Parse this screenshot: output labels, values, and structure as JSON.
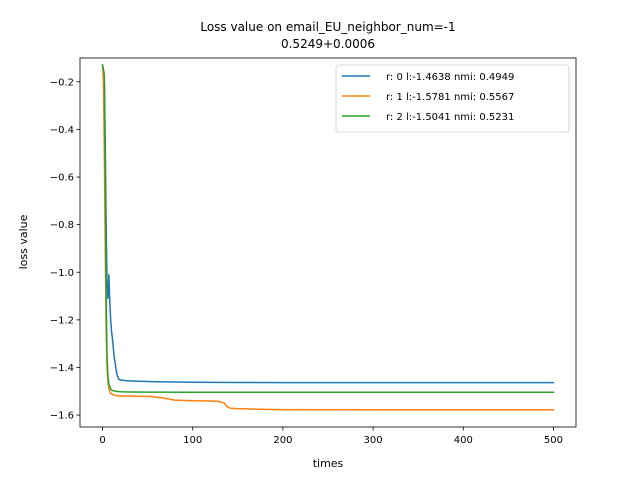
{
  "chart_data": {
    "type": "line",
    "title": "Loss value on email_EU_neighbor_num=-1",
    "subtitle": "0.5249+0.0006",
    "xlabel": "times",
    "ylabel": "loss value",
    "xlim": [
      -25,
      525
    ],
    "ylim": [
      -1.65,
      -0.1
    ],
    "xticks": [
      0,
      100,
      200,
      300,
      400,
      500
    ],
    "xtick_labels": [
      "0",
      "100",
      "200",
      "300",
      "400",
      "500"
    ],
    "yticks": [
      -0.2,
      -0.4,
      -0.6,
      -0.8,
      -1.0,
      -1.2,
      -1.4,
      -1.6
    ],
    "ytick_labels": [
      "−0.2",
      "−0.4",
      "−0.6",
      "−0.8",
      "−1.0",
      "−1.2",
      "−1.4",
      "−1.6"
    ],
    "grid": false,
    "legend_position": "top-right",
    "series": [
      {
        "name": "r: 0 l:-1.4638 nmi: 0.4949",
        "color": "#1f77b4",
        "x": [
          0,
          1,
          2,
          3,
          4,
          5,
          6,
          7,
          8,
          9,
          10,
          11,
          12,
          13,
          14,
          15,
          16,
          18,
          20,
          25,
          30,
          40,
          60,
          80,
          100,
          150,
          200,
          300,
          400,
          500
        ],
        "y": [
          -0.13,
          -0.15,
          -0.2,
          -0.45,
          -0.8,
          -1.05,
          -1.11,
          -1.01,
          -1.12,
          -1.2,
          -1.25,
          -1.28,
          -1.32,
          -1.36,
          -1.38,
          -1.41,
          -1.43,
          -1.45,
          -1.452,
          -1.455,
          -1.456,
          -1.458,
          -1.46,
          -1.461,
          -1.462,
          -1.463,
          -1.4636,
          -1.4638,
          -1.4638,
          -1.4638
        ]
      },
      {
        "name": "r: 1 l:-1.5781 nmi: 0.5567",
        "color": "#ff7f0e",
        "x": [
          0,
          1,
          2,
          3,
          4,
          5,
          6,
          7,
          8,
          9,
          10,
          12,
          15,
          20,
          30,
          55,
          60,
          70,
          80,
          100,
          120,
          130,
          135,
          138,
          142,
          150,
          180,
          200,
          300,
          400,
          500
        ],
        "y": [
          -0.13,
          -0.2,
          -0.5,
          -0.9,
          -1.25,
          -1.4,
          -1.46,
          -1.49,
          -1.5,
          -1.51,
          -1.51,
          -1.515,
          -1.518,
          -1.52,
          -1.52,
          -1.522,
          -1.525,
          -1.53,
          -1.537,
          -1.54,
          -1.541,
          -1.543,
          -1.55,
          -1.565,
          -1.571,
          -1.573,
          -1.576,
          -1.577,
          -1.5778,
          -1.578,
          -1.5781
        ]
      },
      {
        "name": "r: 2 l:-1.5041 nmi: 0.5231",
        "color": "#2ca02c",
        "x": [
          0,
          1,
          2,
          3,
          4,
          5,
          6,
          7,
          8,
          9,
          10,
          12,
          15,
          20,
          30,
          50,
          100,
          200,
          300,
          400,
          500
        ],
        "y": [
          -0.13,
          -0.15,
          -0.17,
          -0.6,
          -1.1,
          -1.35,
          -1.44,
          -1.47,
          -1.48,
          -1.49,
          -1.495,
          -1.498,
          -1.5,
          -1.502,
          -1.503,
          -1.5035,
          -1.504,
          -1.5041,
          -1.5041,
          -1.5041,
          -1.5041
        ]
      }
    ]
  }
}
